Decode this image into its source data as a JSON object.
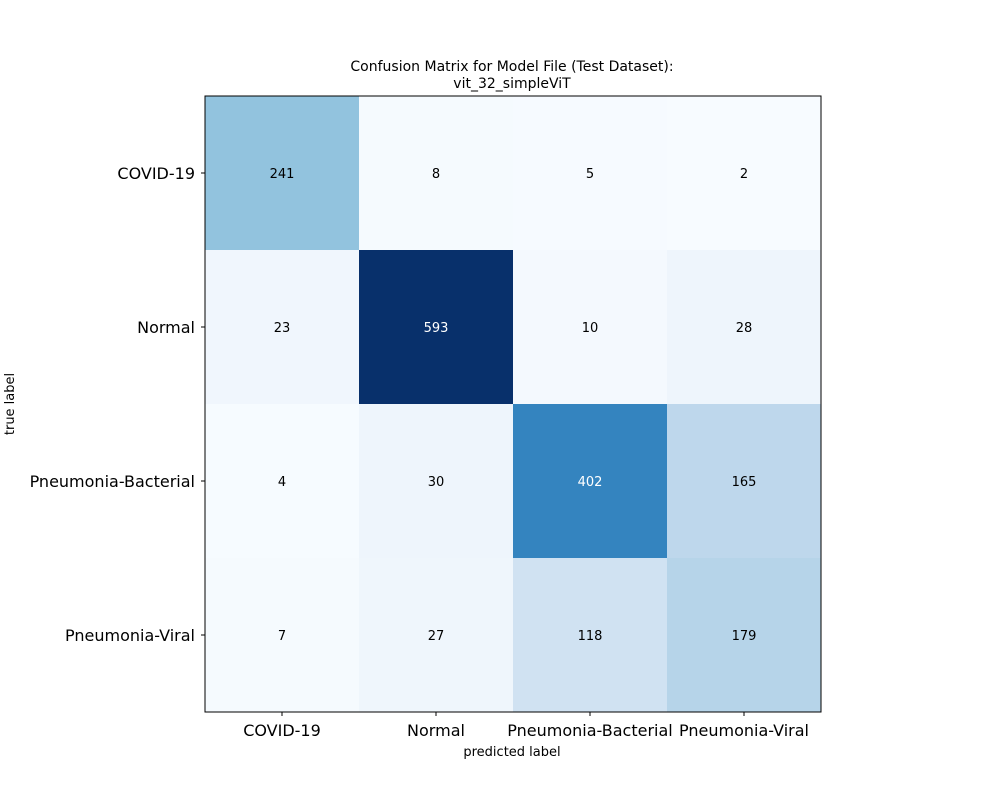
{
  "chart_data": {
    "type": "heatmap",
    "title_lines": [
      "Confusion Matrix for Model File (Test Dataset):",
      "vit_32_simpleViT"
    ],
    "xlabel": "predicted label",
    "ylabel": "true label",
    "x_categories": [
      "COVID-19",
      "Normal",
      "Pneumonia-Bacterial",
      "Pneumonia-Viral"
    ],
    "y_categories": [
      "COVID-19",
      "Normal",
      "Pneumonia-Bacterial",
      "Pneumonia-Viral"
    ],
    "matrix": [
      [
        241,
        8,
        5,
        2
      ],
      [
        23,
        593,
        10,
        28
      ],
      [
        4,
        30,
        402,
        165
      ],
      [
        7,
        27,
        118,
        179
      ]
    ],
    "colormap": "Blues",
    "color_low": "#f7fbff",
    "color_high": "#08306b",
    "grid": false
  }
}
